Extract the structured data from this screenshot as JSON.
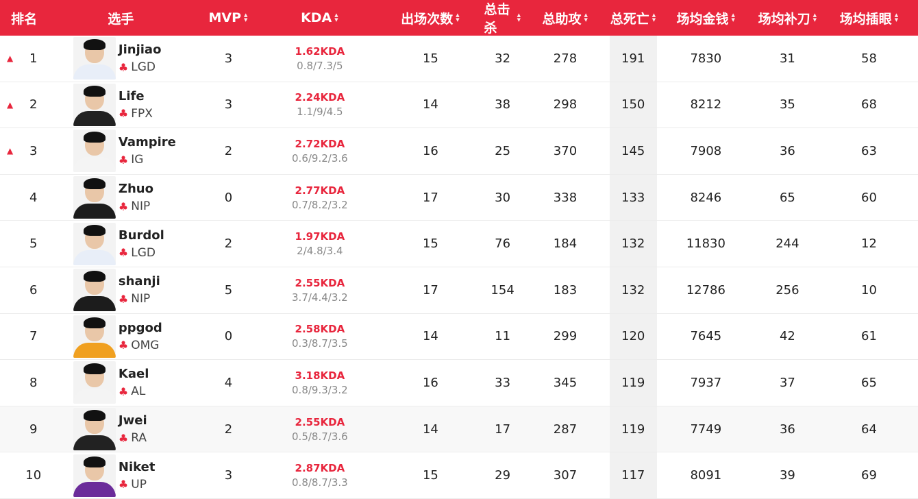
{
  "header": {
    "rank": "排名",
    "player": "选手",
    "mvp": "MVP",
    "kda": "KDA",
    "appearances": "出场次数",
    "total_kills": "总击杀",
    "total_assists": "总助攻",
    "total_deaths": "总死亡",
    "avg_gold": "场均金钱",
    "avg_cs": "场均补刀",
    "avg_wards": "场均插眼"
  },
  "rows": [
    {
      "trend": "up-arrow",
      "rank": "1",
      "name": "Jinjiao",
      "team": "LGD",
      "mvp": "3",
      "kda": "1.62KDA",
      "kda_detail": "0.8/7.3/5",
      "apps": "15",
      "kills": "32",
      "assists": "278",
      "deaths": "191",
      "gold": "7830",
      "cs": "31",
      "wards": "58",
      "shirt": "#e8eef8"
    },
    {
      "trend": "up-arrow",
      "rank": "2",
      "name": "Life",
      "team": "FPX",
      "mvp": "3",
      "kda": "2.24KDA",
      "kda_detail": "1.1/9/4.5",
      "apps": "14",
      "kills": "38",
      "assists": "298",
      "deaths": "150",
      "gold": "8212",
      "cs": "35",
      "wards": "68",
      "shirt": "#222222"
    },
    {
      "trend": "up-arrow",
      "rank": "3",
      "name": "Vampire",
      "team": "IG",
      "mvp": "2",
      "kda": "2.72KDA",
      "kda_detail": "0.6/9.2/3.6",
      "apps": "16",
      "kills": "25",
      "assists": "370",
      "deaths": "145",
      "gold": "7908",
      "cs": "36",
      "wards": "63",
      "shirt": "#f4f4f4"
    },
    {
      "trend": "",
      "rank": "4",
      "name": "Zhuo",
      "team": "NIP",
      "mvp": "0",
      "kda": "2.77KDA",
      "kda_detail": "0.7/8.2/3.2",
      "apps": "17",
      "kills": "30",
      "assists": "338",
      "deaths": "133",
      "gold": "8246",
      "cs": "65",
      "wards": "60",
      "shirt": "#1c1c1c"
    },
    {
      "trend": "",
      "rank": "5",
      "name": "Burdol",
      "team": "LGD",
      "mvp": "2",
      "kda": "1.97KDA",
      "kda_detail": "2/4.8/3.4",
      "apps": "15",
      "kills": "76",
      "assists": "184",
      "deaths": "132",
      "gold": "11830",
      "cs": "244",
      "wards": "12",
      "shirt": "#e8eef8"
    },
    {
      "trend": "",
      "rank": "6",
      "name": "shanji",
      "team": "NIP",
      "mvp": "5",
      "kda": "2.55KDA",
      "kda_detail": "3.7/4.4/3.2",
      "apps": "17",
      "kills": "154",
      "assists": "183",
      "deaths": "132",
      "gold": "12786",
      "cs": "256",
      "wards": "10",
      "shirt": "#1c1c1c"
    },
    {
      "trend": "",
      "rank": "7",
      "name": "ppgod",
      "team": "OMG",
      "mvp": "0",
      "kda": "2.58KDA",
      "kda_detail": "0.3/8.7/3.5",
      "apps": "14",
      "kills": "11",
      "assists": "299",
      "deaths": "120",
      "gold": "7645",
      "cs": "42",
      "wards": "61",
      "shirt": "#f0a020"
    },
    {
      "trend": "",
      "rank": "8",
      "name": "Kael",
      "team": "AL",
      "mvp": "4",
      "kda": "3.18KDA",
      "kda_detail": "0.8/9.3/3.2",
      "apps": "16",
      "kills": "33",
      "assists": "345",
      "deaths": "119",
      "gold": "7937",
      "cs": "37",
      "wards": "65",
      "shirt": "#f4f4f4"
    },
    {
      "trend": "",
      "rank": "9",
      "name": "Jwei",
      "team": "RA",
      "mvp": "2",
      "kda": "2.55KDA",
      "kda_detail": "0.5/8.7/3.6",
      "apps": "14",
      "kills": "17",
      "assists": "287",
      "deaths": "119",
      "gold": "7749",
      "cs": "36",
      "wards": "64",
      "shirt": "#222222"
    },
    {
      "trend": "",
      "rank": "10",
      "name": "Niket",
      "team": "UP",
      "mvp": "3",
      "kda": "2.87KDA",
      "kda_detail": "0.8/8.7/3.3",
      "apps": "15",
      "kills": "29",
      "assists": "307",
      "deaths": "117",
      "gold": "8091",
      "cs": "39",
      "wards": "69",
      "shirt": "#6b2c9a"
    }
  ]
}
